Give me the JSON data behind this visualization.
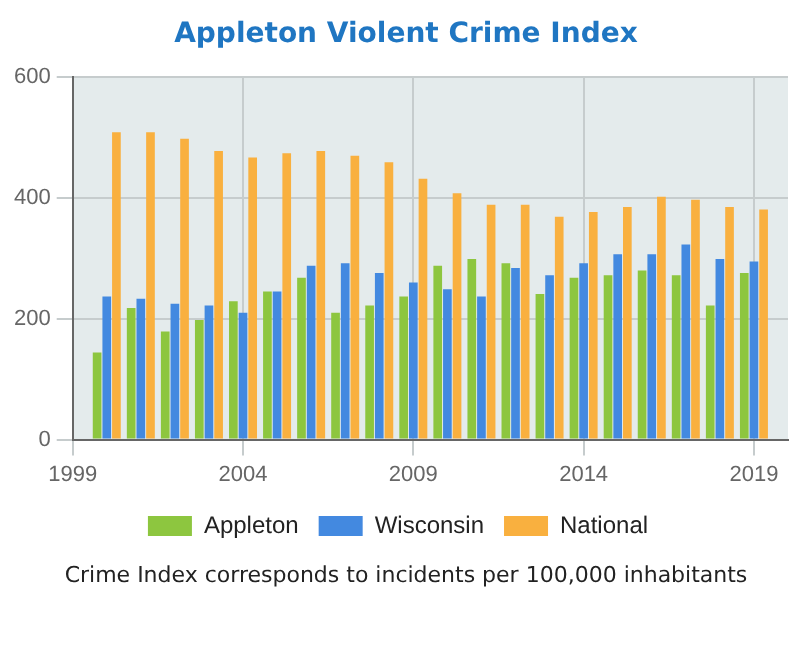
{
  "chart_data": {
    "type": "bar",
    "title": "Appleton Violent Crime Index",
    "x": [
      2000,
      2001,
      2002,
      2003,
      2004,
      2005,
      2006,
      2007,
      2008,
      2009,
      2010,
      2011,
      2012,
      2013,
      2014,
      2015,
      2016,
      2017,
      2018,
      2019
    ],
    "series": [
      {
        "name": "Appleton",
        "color": "#8dc63f",
        "values": [
          144,
          218,
          179,
          198,
          229,
          245,
          268,
          210,
          222,
          237,
          288,
          299,
          292,
          241,
          268,
          272,
          280,
          272,
          222,
          276
        ]
      },
      {
        "name": "Wisconsin",
        "color": "#4389e0",
        "values": [
          237,
          233,
          225,
          222,
          210,
          245,
          288,
          292,
          276,
          260,
          249,
          237,
          284,
          272,
          292,
          307,
          307,
          323,
          299,
          295
        ]
      },
      {
        "name": "National",
        "color": "#f9b03f",
        "values": [
          509,
          509,
          498,
          478,
          467,
          474,
          478,
          470,
          459,
          432,
          408,
          389,
          389,
          369,
          377,
          385,
          402,
          397,
          385,
          381
        ]
      }
    ],
    "xlim": [
      1999,
      2020
    ],
    "xticks": [
      1999,
      2004,
      2009,
      2014,
      2019
    ],
    "ylim": [
      0,
      600
    ],
    "yticks": [
      0,
      200,
      400,
      600
    ],
    "grid": true,
    "legend": "bottom",
    "annotations": [
      "Crime Index corresponds to incidents per 100,000 inhabitants"
    ]
  }
}
